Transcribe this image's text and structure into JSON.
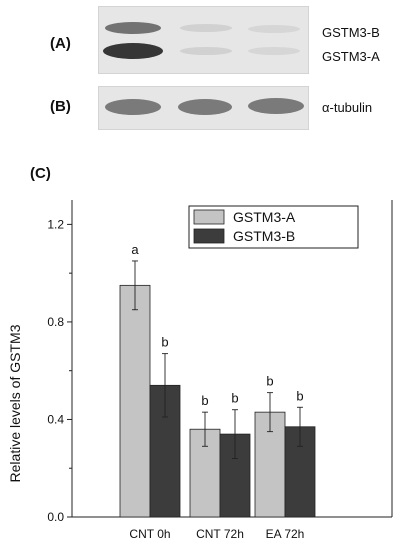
{
  "panels": {
    "a_label": "(A)",
    "b_label": "(B)",
    "c_label": "(C)"
  },
  "blot_a": {
    "labels": [
      "GSTM3-B",
      "GSTM3-A"
    ]
  },
  "blot_b": {
    "labels": [
      "α-tubulin"
    ]
  },
  "chart_data": {
    "type": "bar",
    "categories": [
      "CNT 0h",
      "CNT 72h",
      "EA 72h"
    ],
    "series": [
      {
        "name": "GSTM3-A",
        "color": "#c4c4c4",
        "values": [
          0.95,
          0.36,
          0.43
        ],
        "errors": [
          0.1,
          0.07,
          0.08
        ],
        "labels": [
          "a",
          "b",
          "b"
        ]
      },
      {
        "name": "GSTM3-B",
        "color": "#3c3c3c",
        "values": [
          0.54,
          0.34,
          0.37
        ],
        "errors": [
          0.13,
          0.1,
          0.08
        ],
        "labels": [
          "b",
          "b",
          "b"
        ]
      }
    ],
    "ylabel": "Relative levels of GSTM3",
    "xlabel": "",
    "ylim": [
      0.0,
      1.3
    ],
    "yticks": [
      0.0,
      0.4,
      0.8,
      1.2
    ],
    "ytick_labels": [
      "0.0",
      "0.4",
      "0.8",
      "1.2"
    ],
    "legend_position": "top-right",
    "grid": false
  }
}
